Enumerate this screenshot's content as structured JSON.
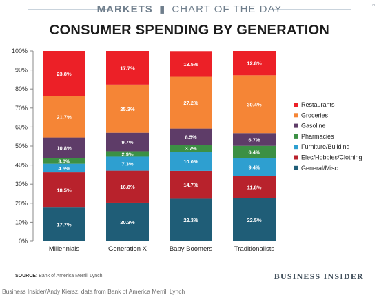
{
  "banner": {
    "markets": "MARKETS",
    "section": "CHART OF THE DAY"
  },
  "title": "CONSUMER SPENDING BY GENERATION",
  "footer": {
    "source_label": "SOURCE:",
    "source_text": "Bank of America Merrill Lynch",
    "brand": "BUSINESS INSIDER"
  },
  "credit": "Business Insider/Andy Kiersz, data from Bank  of America Merrill Lynch",
  "chart_data": {
    "type": "bar",
    "stacked": true,
    "title": "CONSUMER SPENDING BY GENERATION",
    "categories": [
      "Millennials",
      "Generation X",
      "Baby Boomers",
      "Traditionalists"
    ],
    "ylim": [
      0,
      100
    ],
    "yticks": [
      "0%",
      "10%",
      "20%",
      "30%",
      "40%",
      "50%",
      "60%",
      "70%",
      "80%",
      "90%",
      "100%"
    ],
    "grid": false,
    "legend_position": "right",
    "series": [
      {
        "name": "General/Misc",
        "color": "#1f5d77",
        "values": [
          17.7,
          20.3,
          22.3,
          22.5
        ],
        "labels": [
          "17.7%",
          "20.3%",
          "22.3%",
          "22.5%"
        ]
      },
      {
        "name": "Elec/Hobbies/Clothing",
        "color": "#b8222c",
        "values": [
          18.5,
          16.8,
          14.7,
          11.8
        ],
        "labels": [
          "18.5%",
          "16.8%",
          "14.7%",
          "11.8%"
        ]
      },
      {
        "name": "Furniture/Building",
        "color": "#2e9fd0",
        "values": [
          4.5,
          7.3,
          10.0,
          9.4
        ],
        "labels": [
          "4.5%",
          "7.3%",
          "10.0%",
          "9.4%"
        ]
      },
      {
        "name": "Pharmacies",
        "color": "#3c9044",
        "values": [
          3.0,
          2.9,
          3.7,
          6.4
        ],
        "labels": [
          "3.0%",
          "2.9%",
          "3.7%",
          "6.4%"
        ]
      },
      {
        "name": "Gasoline",
        "color": "#5e3c68",
        "values": [
          10.8,
          9.7,
          8.5,
          6.7
        ],
        "labels": [
          "10.8%",
          "9.7%",
          "8.5%",
          "6.7%"
        ]
      },
      {
        "name": "Groceries",
        "color": "#f58536",
        "values": [
          21.7,
          25.3,
          27.2,
          30.4
        ],
        "labels": [
          "21.7%",
          "25.3%",
          "27.2%",
          "30.4%"
        ]
      },
      {
        "name": "Restaurants",
        "color": "#ec2027",
        "values": [
          23.8,
          17.7,
          13.5,
          12.8
        ],
        "labels": [
          "23.8%",
          "17.7%",
          "13.5%",
          "12.8%"
        ]
      }
    ],
    "legend_order": [
      "Restaurants",
      "Groceries",
      "Gasoline",
      "Pharmacies",
      "Furniture/Building",
      "Elec/Hobbies/Clothing",
      "General/Misc"
    ]
  }
}
